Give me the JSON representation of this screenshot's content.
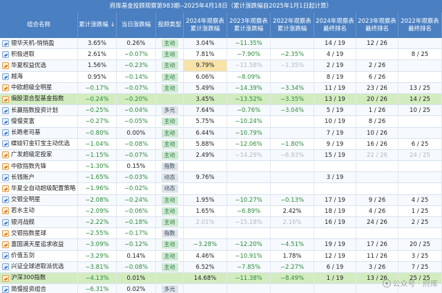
{
  "title": "府库基金投顾观察第983期--2025年4月18日（累计涨跌幅自2025年1月1日起计算）",
  "headers": [
    "组合名称",
    "累计涨跌幅 ↓",
    "当日涨跌幅",
    "投顾类型",
    "2024年观察表 累计涨跌幅",
    "2023年观察表 累计涨跌幅",
    "2022年观察表 累计涨跌幅",
    "2024年观察表 最终排名",
    "2023年观察表 最终排名",
    "2022年观察表 最终排名"
  ],
  "rows": [
    {
      "name": "银华天机-悄悄盈",
      "cum": "3.65%",
      "day": "0.26%",
      "type": "主动",
      "y2024": "3.04%",
      "y2023": "−11.35%",
      "y2022": "",
      "r2024": "14 / 19",
      "r2023": "12 / 26",
      "r2022": ""
    },
    {
      "name": "积极进取",
      "cum": "2.61%",
      "day": "−0.07%",
      "type": "主动",
      "y2024": "7.81%",
      "y2023": "−7.90%",
      "y2022": "−2.35%",
      "r2024": "4 / 19",
      "r2023": "",
      "r2022": "8 / 25"
    },
    {
      "name": "华夏权益优选",
      "cum": "1.56%",
      "day": "−0.23%",
      "type": "主动",
      "y2024": "9.79%",
      "y2023": "−11.58%",
      "y2022": "−1.35%",
      "r2024": "2 / 19",
      "r2023": "2 / 26",
      "r2022": ""
    },
    {
      "name": "越海",
      "cum": "0.95%",
      "day": "−0.14%",
      "type": "主动",
      "y2024": "6.06%",
      "y2023": "−8.09%",
      "y2022": "",
      "r2024": "8 / 19",
      "r2023": "6 / 26",
      "r2022": ""
    },
    {
      "name": "中欧超级全明星",
      "cum": "−0.17%",
      "day": "−0.07%",
      "type": "主动",
      "y2024": "5.49%",
      "y2023": "−14.39%",
      "y2022": "−3.34%",
      "r2024": "11 / 19",
      "r2023": "23 / 26",
      "r2022": "13 / 25"
    },
    {
      "name": "偏股混合型基金指数",
      "cum": "−0.24%",
      "day": "−0.20%",
      "type": "",
      "y2024": "3.45%",
      "y2023": "−13.52%",
      "y2022": "−3.35%",
      "r2024": "13 / 19",
      "r2023": "20 / 26",
      "r2022": "14 / 25"
    },
    {
      "name": "长赢指数投资计划",
      "cum": "−0.25%",
      "day": "−0.04%",
      "type": "多元",
      "y2024": "7.64%",
      "y2023": "−0.76%",
      "y2022": "−3.04%",
      "r2024": "5 / 19",
      "r2023": "1 / 26",
      "r2022": "10 / 25"
    },
    {
      "name": "慢慢变富",
      "cum": "−0.27%",
      "day": "−0.05%",
      "type": "主动",
      "y2024": "5.75%",
      "y2023": "−10.24%",
      "y2022": "",
      "r2024": "10 / 19",
      "r2023": "8 / 26",
      "r2022": ""
    },
    {
      "name": "长跑老司基",
      "cum": "−0.80%",
      "day": "0.00%",
      "type": "主动",
      "y2024": "6.44%",
      "y2023": "−10.79%",
      "y2022": "",
      "r2024": "7 / 19",
      "r2023": "10 / 26",
      "r2022": ""
    },
    {
      "name": "蝶娃钉金钉宝主动优选",
      "cum": "−1.04%",
      "day": "−0.08%",
      "type": "主动",
      "y2024": "5.88%",
      "y2023": "−12.06%",
      "y2022": "−1.80%",
      "r2024": "9 / 19",
      "r2023": "16 / 26",
      "r2022": "6 / 25"
    },
    {
      "name": "广发超级定投家",
      "cum": "−1.15%",
      "day": "−0.07%",
      "type": "主动",
      "y2024": "2.49%",
      "y2023": "−14.29%",
      "y2022": "−6.93%",
      "r2024": "15 / 19",
      "r2023": "22 / 26",
      "r2022": "24 / 25"
    },
    {
      "name": "中欧指数先锋",
      "cum": "−1.30%",
      "day": "0.15%",
      "type": "指数",
      "y2024": "",
      "y2023": "",
      "y2022": "",
      "r2024": "",
      "r2023": "",
      "r2022": ""
    },
    {
      "name": "长钱账户",
      "cum": "−1.65%",
      "day": "−0.03%",
      "type": "动态",
      "y2024": "9.76%",
      "y2023": "",
      "y2022": "",
      "r2024": "3 / 19",
      "r2023": "",
      "r2022": ""
    },
    {
      "name": "华夏全自动超级配置策略",
      "cum": "−1.96%",
      "day": "−0.02%",
      "type": "动态",
      "y2024": "",
      "y2023": "",
      "y2022": "",
      "r2024": "",
      "r2023": "",
      "r2022": ""
    },
    {
      "name": "交银全明星",
      "cum": "−2.08%",
      "day": "−0.24%",
      "type": "主动",
      "y2024": "1.95%",
      "y2023": "−10.27%",
      "y2022": "−0.13%",
      "r2024": "17 / 19",
      "r2023": "9 / 26",
      "r2022": "4 / 25"
    },
    {
      "name": "若水主动",
      "cum": "−2.09%",
      "day": "−0.06%",
      "type": "主动",
      "y2024": "1.65%",
      "y2023": "−6.89%",
      "y2022": "2.42%",
      "r2024": "18 / 19",
      "r2023": "4 / 26",
      "r2022": "1 / 25"
    },
    {
      "name": "银河战舰",
      "cum": "−2.22%",
      "day": "−0.18%",
      "type": "主动",
      "y2024": "2.01%",
      "y2023": "−15.18%",
      "y2022": "2.16%",
      "r2024": "16 / 19",
      "r2023": "24 / 26",
      "r2022": "2 / 25"
    },
    {
      "name": "交银指数星球",
      "cum": "−2.55%",
      "day": "−0.17%",
      "type": "指数",
      "y2024": "",
      "y2023": "",
      "y2022": "",
      "r2024": "",
      "r2023": "",
      "r2022": ""
    },
    {
      "name": "富国满天星追求收益",
      "cum": "−3.09%",
      "day": "−0.12%",
      "type": "主动",
      "y2024": "−3.28%",
      "y2023": "−12.20%",
      "y2022": "−4.51%",
      "r2024": "19 / 19",
      "r2023": "17 / 26",
      "r2022": "20 / 25"
    },
    {
      "name": "价值五剑",
      "cum": "−3.29%",
      "day": "0.14%",
      "type": "主动",
      "y2024": "4.46%",
      "y2023": "−10.91%",
      "y2022": "1.78%",
      "r2024": "12 / 19",
      "r2023": "11 / 26",
      "r2022": "3 / 25"
    },
    {
      "name": "兴证全球进取派优选",
      "cum": "−3.81%",
      "day": "−0.08%",
      "type": "主动",
      "y2024": "6.52%",
      "y2023": "−7.85%",
      "y2022": "−2.27%",
      "r2024": "6 / 19",
      "r2023": "3 / 26",
      "r2022": "7 / 25"
    },
    {
      "name": "沪深300指数",
      "cum": "−4.13%",
      "day": "0.01%",
      "type": "",
      "y2024": "14.68%",
      "y2023": "−11.38%",
      "y2022": "−8.49%",
      "r2024": "1 / 19",
      "r2023": "13 / 26",
      "r2022": "25 / 25"
    },
    {
      "name": "简慢投资组合",
      "cum": "−6.31%",
      "day": "0.02%",
      "type": "多元",
      "y2024": "",
      "y2023": "",
      "y2022": "",
      "r2024": "",
      "r2023": "",
      "r2022": ""
    }
  ],
  "watermark": "公众号 · 府库"
}
